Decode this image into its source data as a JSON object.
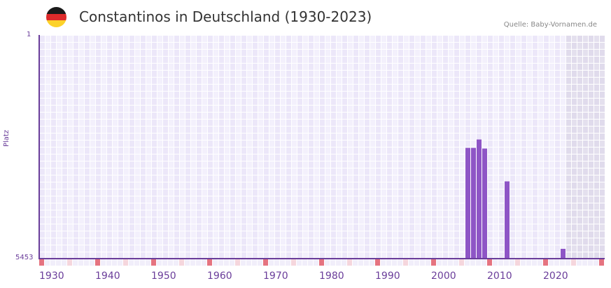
{
  "header": {
    "title": "Constantinos in Deutschland (1930-2023)",
    "source": "Quelle: Baby-Vornamen.de",
    "flag_icon": "germany-flag-icon"
  },
  "axis": {
    "y_top": "1",
    "y_bottom": "5453",
    "y_label": "Platz"
  },
  "colors": {
    "bar": "#8e55c6",
    "axis": "#6a3d9a",
    "decade_marker": "#e57380",
    "half_marker": "#f5d6dd"
  },
  "chart_data": {
    "type": "bar",
    "title": "Constantinos in Deutschland (1930-2023)",
    "xlabel": "",
    "ylabel": "Platz",
    "ylim": [
      5453,
      1
    ],
    "x_ticks": [
      "1930",
      "1940",
      "1950",
      "1960",
      "1970",
      "1980",
      "1990",
      "2000",
      "2010",
      "2020"
    ],
    "categories": [
      "2006",
      "2007",
      "2008",
      "2009",
      "2013",
      "2023"
    ],
    "values": [
      2753,
      2753,
      2549,
      2770,
      3570,
      5214
    ],
    "grid": true
  }
}
